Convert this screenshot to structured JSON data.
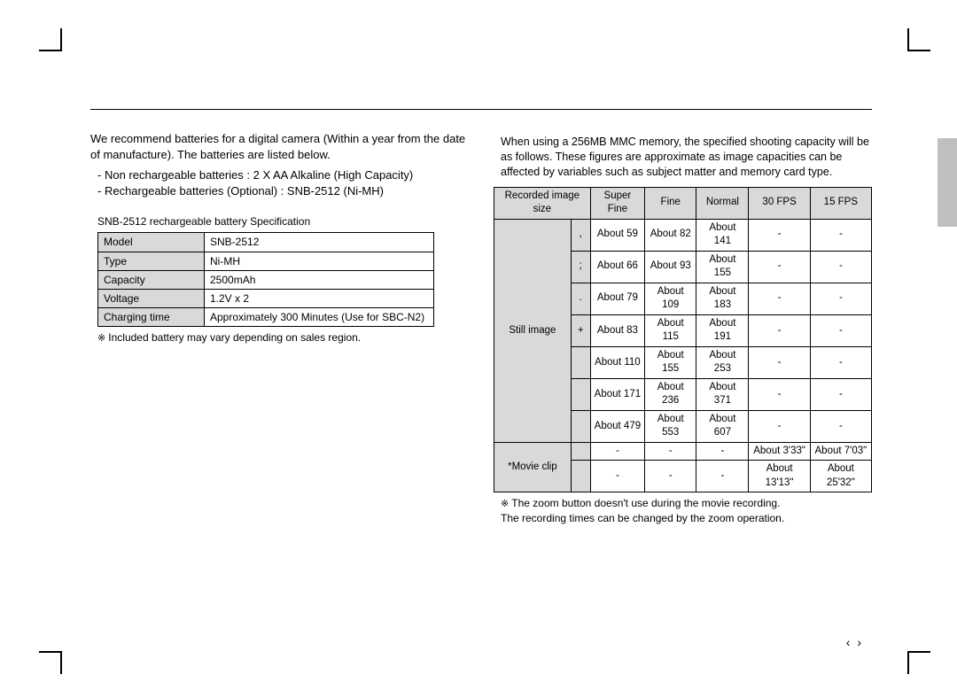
{
  "left": {
    "intro": "We recommend batteries for a digital camera (Within a year from the date of manufacture). The batteries are listed below.",
    "bullets": [
      "Non rechargeable batteries : 2 X AA Alkaline (High Capacity)",
      "Rechargeable batteries (Optional) : SNB-2512 (Ni-MH)"
    ],
    "spec_heading": "SNB-2512 rechargeable battery Speciﬁcation",
    "spec_rows": [
      {
        "label": "Model",
        "value": "SNB-2512"
      },
      {
        "label": "Type",
        "value": "Ni-MH"
      },
      {
        "label": "Capacity",
        "value": "2500mAh"
      },
      {
        "label": "Voltage",
        "value": "1.2V x 2"
      },
      {
        "label": "Charging time",
        "value": "Approximately 300 Minutes (Use for SBC-N2)"
      }
    ],
    "spec_footnote": "Included battery may vary depending on sales region."
  },
  "right": {
    "intro": "When using a 256MB MMC memory, the speciﬁed shooting capacity will be as follows. These ﬁgures are approximate as image capacities can be affected by variables such as subject matter and memory card type.",
    "headers": [
      "Recorded image size",
      "Super Fine",
      "Fine",
      "Normal",
      "30 FPS",
      "15 FPS"
    ],
    "row_group_still": "Still image",
    "row_group_movie": "*Movie clip",
    "still_rows": [
      {
        "size": ",",
        "sf": "About 59",
        "f": "About 82",
        "n": "About 141",
        "fps30": "-",
        "fps15": "-"
      },
      {
        "size": ";",
        "sf": "About 66",
        "f": "About 93",
        "n": "About 155",
        "fps30": "-",
        "fps15": "-"
      },
      {
        "size": ".",
        "sf": "About 79",
        "f": "About 109",
        "n": "About 183",
        "fps30": "-",
        "fps15": "-"
      },
      {
        "size": "+",
        "sf": "About 83",
        "f": "About 115",
        "n": "About 191",
        "fps30": "-",
        "fps15": "-"
      },
      {
        "size": "",
        "sf": "About 110",
        "f": "About 155",
        "n": "About 253",
        "fps30": "-",
        "fps15": "-"
      },
      {
        "size": "",
        "sf": "About 171",
        "f": "About 236",
        "n": "About 371",
        "fps30": "-",
        "fps15": "-"
      },
      {
        "size": "",
        "sf": "About 479",
        "f": "About 553",
        "n": "About 607",
        "fps30": "-",
        "fps15": "-"
      }
    ],
    "movie_rows": [
      {
        "size": "",
        "sf": "-",
        "f": "-",
        "n": "-",
        "fps30": "About 3'33\"",
        "fps15": "About 7'03\""
      },
      {
        "size": "",
        "sf": "-",
        "f": "-",
        "n": "-",
        "fps30": "About 13'13\"",
        "fps15": "About 25'32\""
      }
    ],
    "footnote": "The zoom button doesn't use during the movie recording.\nThe recording times can be changed by the zoom operation."
  },
  "page_number": " "
}
